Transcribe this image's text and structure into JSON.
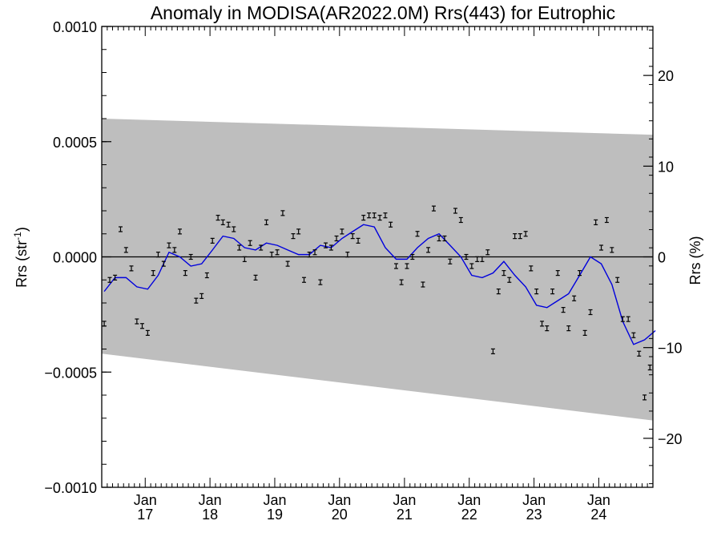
{
  "chart_data": {
    "type": "scatter",
    "title": "Anomaly in MODISA(AR2022.0M) Rrs(443) for Eutrophic",
    "ylabel_left": "Rrs (str",
    "ylabel_left_sup": "-1",
    "ylabel_left_close": ")",
    "ylabel_right": "Rrs (%)",
    "ylim_left": [
      -0.001,
      0.001
    ],
    "ylim_right": [
      -25.4,
      25.4
    ],
    "left_ticks": [
      {
        "value": 0.001,
        "label": "0.0010"
      },
      {
        "value": 0.0005,
        "label": "0.0005"
      },
      {
        "value": 0.0,
        "label": "0.0000"
      },
      {
        "value": -0.0005,
        "label": "−0.0005"
      },
      {
        "value": -0.001,
        "label": "−0.0010"
      }
    ],
    "right_ticks": [
      {
        "value": 20,
        "label": "20"
      },
      {
        "value": 10,
        "label": "10"
      },
      {
        "value": 0,
        "label": "0"
      },
      {
        "value": -10,
        "label": "−10"
      },
      {
        "value": -20,
        "label": "−20"
      }
    ],
    "xlim": [
      "2016-05-01",
      "2024-11-01"
    ],
    "x_ticks": [
      {
        "date": "2017-01-01",
        "label_top": "Jan",
        "label_bottom": "17"
      },
      {
        "date": "2018-01-01",
        "label_top": "Jan",
        "label_bottom": "18"
      },
      {
        "date": "2019-01-01",
        "label_top": "Jan",
        "label_bottom": "19"
      },
      {
        "date": "2020-01-01",
        "label_top": "Jan",
        "label_bottom": "20"
      },
      {
        "date": "2021-01-01",
        "label_top": "Jan",
        "label_bottom": "21"
      },
      {
        "date": "2022-01-01",
        "label_top": "Jan",
        "label_bottom": "22"
      },
      {
        "date": "2023-01-01",
        "label_top": "Jan",
        "label_bottom": "23"
      },
      {
        "date": "2024-01-01",
        "label_top": "Jan",
        "label_bottom": "24"
      }
    ],
    "band": {
      "upper": [
        0.0006,
        0.00053
      ],
      "lower": [
        -0.00042,
        -0.00071
      ],
      "color": "#bebebe"
    },
    "zero_line": true,
    "grid": false,
    "colors": {
      "points": "#000000",
      "smooth_line": "#0000dd",
      "band": "#bebebe"
    },
    "series": [
      {
        "kind": "points",
        "x": [
          "2016-05",
          "2016-06",
          "2016-07",
          "2016-08",
          "2016-09",
          "2016-10",
          "2016-11",
          "2016-12",
          "2017-01",
          "2017-02",
          "2017-03",
          "2017-04",
          "2017-05",
          "2017-06",
          "2017-07",
          "2017-08",
          "2017-09",
          "2017-10",
          "2017-11",
          "2017-12",
          "2018-01",
          "2018-02",
          "2018-03",
          "2018-04",
          "2018-05",
          "2018-06",
          "2018-07",
          "2018-08",
          "2018-09",
          "2018-10",
          "2018-11",
          "2018-12",
          "2019-01",
          "2019-02",
          "2019-03",
          "2019-04",
          "2019-05",
          "2019-06",
          "2019-07",
          "2019-08",
          "2019-09",
          "2019-10",
          "2019-11",
          "2019-12",
          "2020-01",
          "2020-02",
          "2020-03",
          "2020-04",
          "2020-05",
          "2020-06",
          "2020-07",
          "2020-08",
          "2020-09",
          "2020-10",
          "2020-11",
          "2020-12",
          "2021-01",
          "2021-02",
          "2021-03",
          "2021-04",
          "2021-05",
          "2021-06",
          "2021-07",
          "2021-08",
          "2021-09",
          "2021-10",
          "2021-11",
          "2021-12",
          "2022-01",
          "2022-02",
          "2022-03",
          "2022-04",
          "2022-05",
          "2022-06",
          "2022-07",
          "2022-08",
          "2022-09",
          "2022-10",
          "2022-11",
          "2022-12",
          "2023-01",
          "2023-02",
          "2023-03",
          "2023-04",
          "2023-05",
          "2023-06",
          "2023-07",
          "2023-08",
          "2023-09",
          "2023-10",
          "2023-11",
          "2023-12",
          "2024-01",
          "2024-02",
          "2024-03",
          "2024-04",
          "2024-05",
          "2024-06",
          "2024-07",
          "2024-08",
          "2024-09",
          "2024-10"
        ],
        "y": [
          -0.00029,
          -0.0001,
          -9e-05,
          0.00012,
          3e-05,
          -5e-05,
          -0.00028,
          -0.0003,
          -0.00033,
          -7e-05,
          1e-05,
          -3e-05,
          5e-05,
          3e-05,
          0.00011,
          -7e-05,
          0.0,
          -0.00019,
          -0.00017,
          -8e-05,
          7e-05,
          0.00017,
          0.00015,
          0.00014,
          0.00012,
          4e-05,
          -1e-05,
          6e-05,
          -9e-05,
          4e-05,
          0.00015,
          1e-05,
          2e-05,
          0.00019,
          -3e-05,
          9e-05,
          0.00011,
          -0.0001,
          1e-05,
          2e-05,
          -0.00011,
          5e-05,
          4e-05,
          8e-05,
          0.00011,
          1e-05,
          9e-05,
          7e-05,
          0.00017,
          0.00018,
          0.00018,
          0.00017,
          0.00018,
          0.00014,
          -4e-05,
          -0.00011,
          -4e-05,
          0.0,
          0.0001,
          -0.00012,
          3e-05,
          0.00021,
          8e-05,
          8e-05,
          -2e-05,
          0.0002,
          0.00016,
          0.0,
          -4e-05,
          -1e-05,
          -1e-05,
          2e-05,
          -0.00041,
          -0.00015,
          -7e-05,
          -0.0001,
          9e-05,
          9e-05,
          0.0001,
          -5e-05,
          -0.00015,
          -0.00029,
          -0.00031,
          -0.00015,
          -7e-05,
          -0.00023,
          -0.00031,
          -0.00018,
          -7e-05,
          -0.00033,
          -0.00024,
          0.00015,
          4e-05,
          0.00016,
          3e-05,
          -0.0001,
          -0.00027,
          -0.00027,
          -0.00034,
          -0.00042,
          -0.00061,
          -0.00048
        ]
      },
      {
        "kind": "smooth_line",
        "x": [
          "2016-05",
          "2016-07",
          "2016-09",
          "2016-11",
          "2017-01",
          "2017-03",
          "2017-05",
          "2017-07",
          "2017-09",
          "2017-11",
          "2018-01",
          "2018-03",
          "2018-05",
          "2018-07",
          "2018-09",
          "2018-11",
          "2019-01",
          "2019-03",
          "2019-05",
          "2019-07",
          "2019-09",
          "2019-11",
          "2020-01",
          "2020-03",
          "2020-05",
          "2020-07",
          "2020-09",
          "2020-11",
          "2021-01",
          "2021-03",
          "2021-05",
          "2021-07",
          "2021-09",
          "2021-11",
          "2022-01",
          "2022-03",
          "2022-05",
          "2022-07",
          "2022-09",
          "2022-11",
          "2023-01",
          "2023-03",
          "2023-05",
          "2023-07",
          "2023-09",
          "2023-11",
          "2024-01",
          "2024-03",
          "2024-05",
          "2024-07",
          "2024-09",
          "2024-11"
        ],
        "y": [
          -0.00015,
          -9e-05,
          -9e-05,
          -0.00013,
          -0.00014,
          -8e-05,
          2e-05,
          0.0,
          -4e-05,
          -3e-05,
          3e-05,
          9e-05,
          8e-05,
          4e-05,
          3e-05,
          6e-05,
          5e-05,
          3e-05,
          1e-05,
          1e-05,
          5e-05,
          4e-05,
          8e-05,
          0.00011,
          0.00014,
          0.00013,
          4e-05,
          -1e-05,
          -1e-05,
          4e-05,
          8e-05,
          0.0001,
          5e-05,
          0.0,
          -8e-05,
          -9e-05,
          -7e-05,
          -2e-05,
          -8e-05,
          -0.00013,
          -0.00021,
          -0.00022,
          -0.00019,
          -0.00016,
          -8e-05,
          0.0,
          -3e-05,
          -0.00012,
          -0.00028,
          -0.00038,
          -0.00036,
          -0.00032
        ]
      }
    ]
  }
}
